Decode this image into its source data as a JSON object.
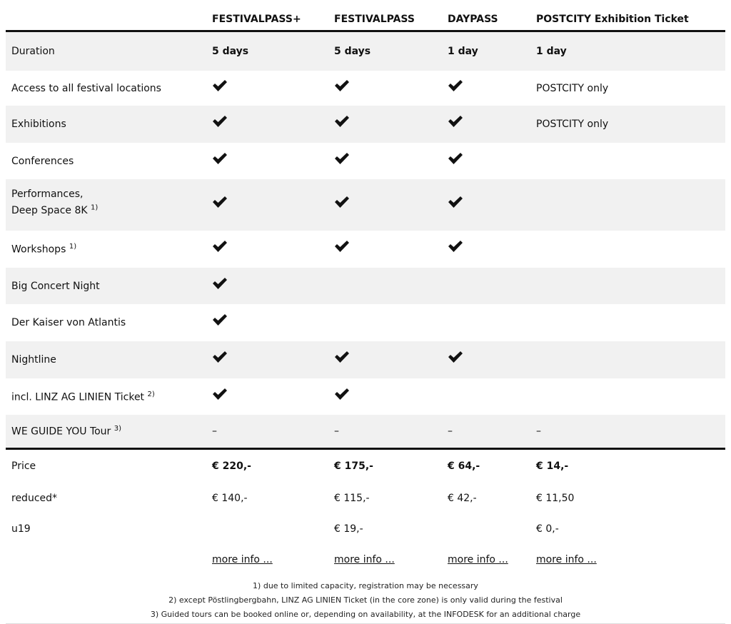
{
  "columns": [
    "FESTIVALPASS+",
    "FESTIVALPASS",
    "DAYPASS",
    "POSTCITY Exhibition Ticket"
  ],
  "rows": [
    {
      "label": "Duration",
      "sup": "",
      "cells": [
        "5 days",
        "5 days",
        "1 day",
        "1 day"
      ],
      "bold": true
    },
    {
      "label": "Access to all festival locations",
      "sup": "",
      "cells": [
        "check",
        "check",
        "check",
        "POSTCITY only"
      ]
    },
    {
      "label": "Exhibitions",
      "sup": "",
      "cells": [
        "check",
        "check",
        "check",
        "POSTCITY only"
      ]
    },
    {
      "label": "Conferences",
      "sup": "",
      "cells": [
        "check",
        "check",
        "check",
        ""
      ]
    },
    {
      "label": "Performances,",
      "label2": "Deep Space 8K",
      "sup": "1)",
      "cells": [
        "check",
        "check",
        "check",
        ""
      ]
    },
    {
      "label": "Workshops",
      "sup": "1)",
      "cells": [
        "check",
        "check",
        "check",
        ""
      ]
    },
    {
      "label": "Big Concert Night",
      "sup": "",
      "cells": [
        "check",
        "",
        "",
        ""
      ]
    },
    {
      "label": "Der Kaiser von Atlantis",
      "sup": "",
      "cells": [
        "check",
        "",
        "",
        ""
      ]
    },
    {
      "label": "Nightline",
      "sup": "",
      "cells": [
        "check",
        "check",
        "check",
        ""
      ]
    },
    {
      "label": "incl. LINZ AG LINIEN Ticket",
      "sup": "2)",
      "cells": [
        "check",
        "check",
        "",
        ""
      ]
    },
    {
      "label": "WE GUIDE YOU Tour",
      "sup": "3)",
      "cells": [
        "–",
        "–",
        "–",
        "–"
      ]
    }
  ],
  "prices": [
    {
      "label": "Price",
      "cells": [
        "€ 220,-",
        "€ 175,-",
        "€ 64,-",
        "€ 14,-"
      ],
      "bold": true
    },
    {
      "label": "reduced*",
      "cells": [
        "€ 140,-",
        "€ 115,-",
        "€ 42,-",
        "€ 11,50"
      ]
    },
    {
      "label": "u19",
      "cells": [
        "",
        "€ 19,-",
        "",
        "€ 0,-"
      ]
    }
  ],
  "more_info": [
    "more info ...",
    "more info ...",
    "more info ...",
    "more info ..."
  ],
  "footnotes": [
    "1) due to limited capacity, registration may be necessary",
    "2) except Pöstlingbergbahn, LINZ AG LINIEN Ticket (in the core zone) is only valid during the festival",
    "3) Guided tours can be booked online or, depending on availability, at the INFODESK for an additional charge"
  ]
}
